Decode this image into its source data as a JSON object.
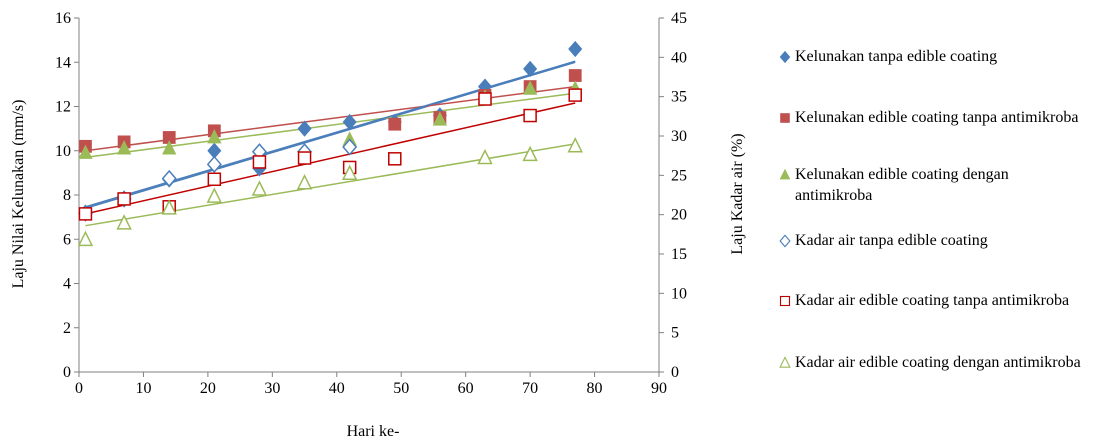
{
  "chart_data": {
    "type": "scatter",
    "xlabel": "Hari ke-",
    "ylabel_left": "Laju Nilai Kelunakan  (mm/s)",
    "ylabel_right": "Laju Kadar air (%)",
    "xlim": [
      0,
      90
    ],
    "ylim_left": [
      0,
      16
    ],
    "ylim_right": [
      0,
      45
    ],
    "x_ticks": [
      "0",
      "10",
      "20",
      "30",
      "40",
      "50",
      "60",
      "70",
      "80",
      "90"
    ],
    "y_ticks_left": [
      "0",
      "2",
      "4",
      "6",
      "8",
      "10",
      "12",
      "14",
      "16"
    ],
    "y_ticks_right": [
      "0",
      "5",
      "10",
      "15",
      "20",
      "25",
      "30",
      "35",
      "40",
      "45"
    ],
    "grid": false,
    "legend_position": "right",
    "series": [
      {
        "name": "Kelunakan tanpa edible coating",
        "axis": "left",
        "marker": "diamond-filled",
        "color": "#4a7ebb",
        "x": [
          1,
          7,
          14,
          21,
          28,
          35,
          42,
          49,
          56,
          63,
          70,
          77
        ],
        "y": [
          7.2,
          7.8,
          8.7,
          10.0,
          9.2,
          11.0,
          11.3,
          11.3,
          11.6,
          12.9,
          13.7,
          14.6
        ],
        "trend": [
          7.4,
          14.0
        ]
      },
      {
        "name": "Kelunakan edible coating tanpa antimikroba",
        "axis": "left",
        "marker": "square-filled",
        "color": "#c0504d",
        "x": [
          1,
          7,
          14,
          21,
          49,
          56,
          63,
          70,
          77
        ],
        "y": [
          10.2,
          10.4,
          10.6,
          10.9,
          11.2,
          11.5,
          12.5,
          12.9,
          13.4
        ],
        "trend": [
          10.0,
          12.9
        ]
      },
      {
        "name": "Kelunakan edible coating dengan antimikroba",
        "axis": "left",
        "marker": "triangle-filled",
        "color": "#9bbb59",
        "x": [
          1,
          7,
          14,
          21,
          42,
          56,
          63,
          70,
          77
        ],
        "y": [
          9.9,
          10.1,
          10.1,
          10.6,
          10.5,
          11.4,
          12.4,
          12.8,
          12.8
        ],
        "trend": [
          9.7,
          12.6
        ]
      },
      {
        "name": "Kadar air tanpa edible coating",
        "axis": "right",
        "marker": "diamond-open",
        "color": "#4a7ebb",
        "x": [
          1,
          7,
          14,
          21,
          28,
          35,
          42
        ],
        "y": [
          20.2,
          22.0,
          24.6,
          26.4,
          28.0,
          28.0,
          28.6
        ],
        "trend": [
          21.0,
          39.5
        ]
      },
      {
        "name": "Kadar air edible coating tanpa antimikroba",
        "axis": "right",
        "marker": "square-open",
        "color": "#c00000",
        "x": [
          1,
          7,
          14,
          21,
          28,
          35,
          42,
          49,
          63,
          70,
          77
        ],
        "y": [
          20.1,
          22.0,
          21.0,
          24.5,
          26.7,
          27.2,
          26.0,
          27.1,
          34.7,
          32.6,
          35.2
        ],
        "trend": [
          20.1,
          34.2
        ]
      },
      {
        "name": "Kadar air edible coating dengan antimikroba",
        "axis": "right",
        "marker": "triangle-open",
        "color": "#9bbb59",
        "x": [
          1,
          7,
          14,
          21,
          28,
          35,
          42,
          63,
          70,
          77
        ],
        "y": [
          16.8,
          18.9,
          20.8,
          22.3,
          23.2,
          24.0,
          25.2,
          27.2,
          27.6,
          28.7
        ],
        "trend": [
          18.6,
          29.0
        ]
      }
    ]
  }
}
